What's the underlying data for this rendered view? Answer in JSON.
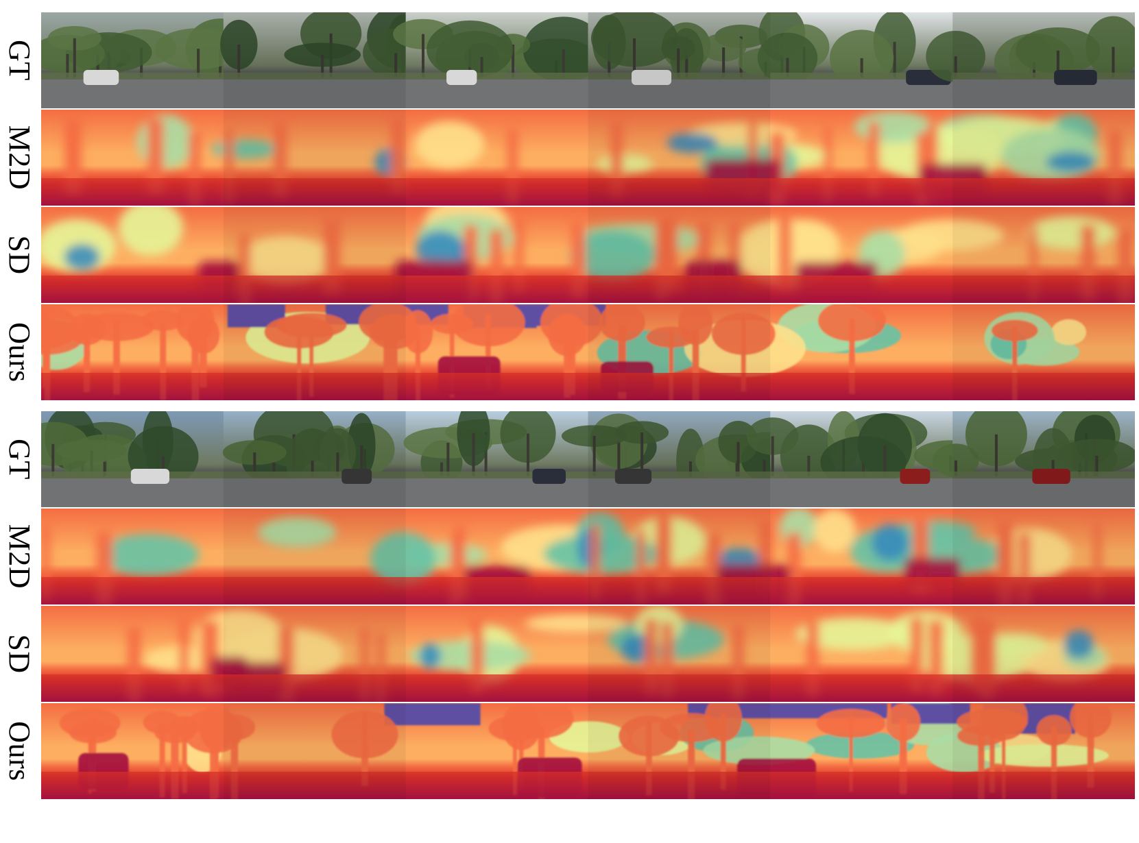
{
  "figure": {
    "groups": [
      {
        "rows": [
          {
            "label": "GT",
            "kind": "rgb"
          },
          {
            "label": "M2D",
            "kind": "depth-blurry"
          },
          {
            "label": "SD",
            "kind": "depth-blurry"
          },
          {
            "label": "Ours",
            "kind": "depth-sharp"
          }
        ]
      },
      {
        "rows": [
          {
            "label": "GT",
            "kind": "rgb"
          },
          {
            "label": "M2D",
            "kind": "depth-blurry"
          },
          {
            "label": "SD",
            "kind": "depth-blurry"
          },
          {
            "label": "Ours",
            "kind": "depth-sharp"
          }
        ]
      }
    ],
    "views_per_row": 6,
    "colormap": [
      "#a3123f",
      "#d73027",
      "#f46d43",
      "#fdae61",
      "#fee08b",
      "#e6f598",
      "#abdda4",
      "#66c2a5",
      "#3288bd",
      "#5e4fa2"
    ]
  }
}
